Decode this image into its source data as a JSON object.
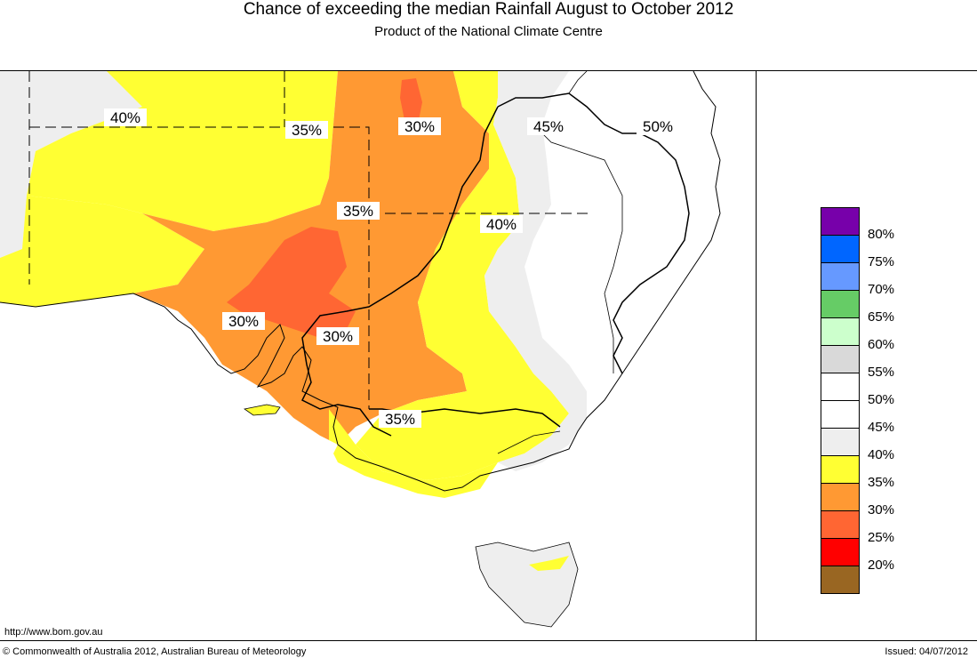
{
  "title": "Chance of exceeding the median Rainfall August to October 2012",
  "subtitle": "Product of the National Climate Centre",
  "map": {
    "contour_labels": [
      "40%",
      "35%",
      "30%",
      "45%",
      "50%",
      "35%",
      "40%",
      "30%",
      "30%",
      "35%"
    ],
    "colors": {
      "sea": "#ffffff",
      "p30": "#ff6633",
      "p35": "#ff9933",
      "p40": "#ffff33",
      "p45": "#eeeeee",
      "p50": "#ffffff"
    }
  },
  "legend": {
    "items": [
      {
        "label": "80%",
        "color": "#7700aa"
      },
      {
        "label": "75%",
        "color": "#0066ff"
      },
      {
        "label": "70%",
        "color": "#6699ff"
      },
      {
        "label": "65%",
        "color": "#66cc66"
      },
      {
        "label": "60%",
        "color": "#ccffcc"
      },
      {
        "label": "55%",
        "color": "#d9d9d9"
      },
      {
        "label": "50%",
        "color": "#ffffff"
      },
      {
        "label": "45%",
        "color": "#ffffff"
      },
      {
        "label": "40%",
        "color": "#eeeeee"
      },
      {
        "label": "35%",
        "color": "#ffff33"
      },
      {
        "label": "30%",
        "color": "#ff9933"
      },
      {
        "label": "25%",
        "color": "#ff6633"
      },
      {
        "label": "20%",
        "color": "#ff0000"
      },
      {
        "label": "",
        "color": "#996622"
      }
    ]
  },
  "footer": {
    "url": "http://www.bom.gov.au",
    "copyright": "© Commonwealth of Australia 2012, Australian Bureau of Meteorology",
    "issued": "Issued: 04/07/2012"
  }
}
